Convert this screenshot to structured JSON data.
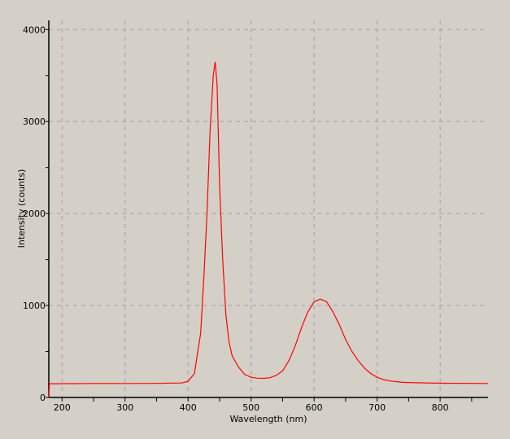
{
  "chart_data": {
    "type": "line",
    "title": "",
    "xlabel": "Wavelength (nm)",
    "ylabel": "Intensity (counts)",
    "xlim": [
      179,
      876
    ],
    "ylim": [
      0,
      4100
    ],
    "xticks": [
      200,
      300,
      400,
      500,
      600,
      700,
      800
    ],
    "yticks": [
      0,
      1000,
      2000,
      3000,
      4000
    ],
    "grid": true,
    "legend": "none",
    "colors": {
      "line": "#ff0000",
      "grid": "#a0a0a0",
      "background": "#d4d0c8"
    },
    "series": [
      {
        "x": [
          179,
          180,
          200,
          250,
          300,
          350,
          390,
          400,
          410,
          420,
          425,
          430,
          435,
          440,
          443,
          446,
          450,
          455,
          460,
          465,
          470,
          480,
          490,
          500,
          510,
          520,
          530,
          540,
          550,
          560,
          570,
          580,
          590,
          600,
          610,
          620,
          630,
          640,
          650,
          660,
          670,
          680,
          690,
          700,
          710,
          720,
          740,
          760,
          800,
          876
        ],
        "y": [
          0,
          150,
          150,
          152,
          152,
          153,
          158,
          175,
          260,
          700,
          1300,
          2000,
          2900,
          3500,
          3650,
          3400,
          2300,
          1500,
          900,
          600,
          450,
          330,
          250,
          220,
          210,
          208,
          215,
          240,
          290,
          400,
          560,
          760,
          930,
          1040,
          1070,
          1040,
          930,
          790,
          630,
          500,
          400,
          320,
          260,
          220,
          195,
          180,
          165,
          160,
          155,
          152
        ]
      }
    ]
  }
}
